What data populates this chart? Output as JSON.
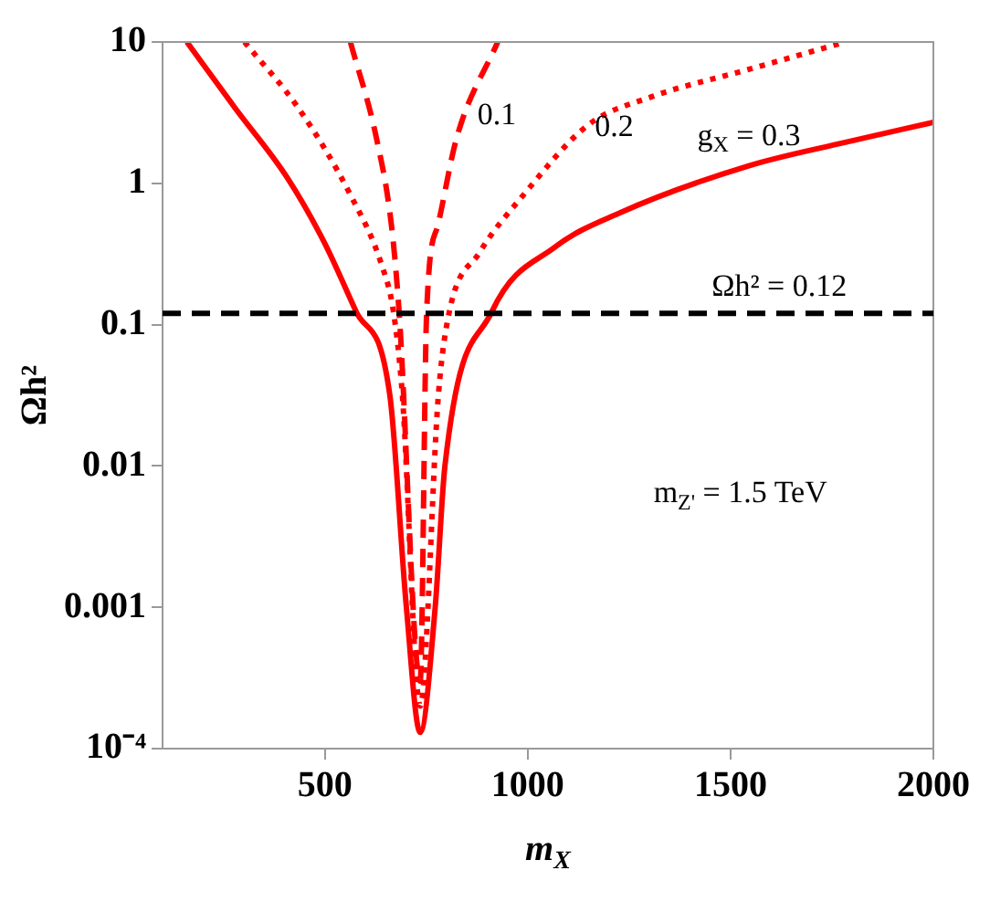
{
  "chart_data": {
    "type": "line",
    "xlabel": "m$_{X}$",
    "ylabel": "Ωh²",
    "log": "y",
    "grid": false,
    "legend": false,
    "marker": "none",
    "xlim": [
      100,
      2000
    ],
    "xticks": [
      500,
      1000,
      1500,
      2000
    ],
    "ylim": [
      0.0001,
      10
    ],
    "yticks": [
      0.001,
      0.01,
      0.1,
      1,
      10,
      {
        "value": 0.0001,
        "label": "10⁻⁴"
      }
    ],
    "series": [
      {
        "name": "g$_{X}$ = 0.3",
        "color": "#ff0000",
        "line_style": "solid",
        "x": [
          160,
          279,
          407,
          499,
          577,
          660,
          701,
          735,
          772,
          796,
          912,
          1068,
          1228,
          1545,
          1783,
          2000
        ],
        "values": [
          10,
          3.4,
          1.1,
          0.38,
          0.124,
          0.032,
          0.001,
          0.00013,
          0.001,
          0.01,
          0.124,
          0.355,
          0.62,
          1.33,
          1.95,
          2.7
        ]
      },
      {
        "name": "0.2",
        "color": "#ff0000",
        "line_style": "dotted",
        "x": [
          302,
          435,
          563,
          641,
          669,
          691,
          735,
          780,
          807,
          880,
          990,
          1150,
          1306,
          1545,
          1783
        ],
        "values": [
          10,
          3.4,
          0.83,
          0.26,
          0.124,
          0.032,
          0.0002,
          0.032,
          0.124,
          0.32,
          0.83,
          2.6,
          4.1,
          6.4,
          10
        ]
      },
      {
        "name": "0.1",
        "color": "#ff0000",
        "line_style": "dashed",
        "x": [
          563,
          627,
          664,
          683,
          735,
          751,
          779,
          825,
          926
        ],
        "values": [
          10,
          2.1,
          0.51,
          0.124,
          0.0003,
          0.124,
          0.51,
          2.1,
          10
        ]
      }
    ],
    "ref_lines": [
      {
        "axis": "y",
        "value": 0.12,
        "label": "Ωh² = 0.12",
        "color": "#000000",
        "line_style": "dashed"
      }
    ],
    "annotations": [
      "m$_{Z'}$ = 1.5 TeV"
    ]
  }
}
